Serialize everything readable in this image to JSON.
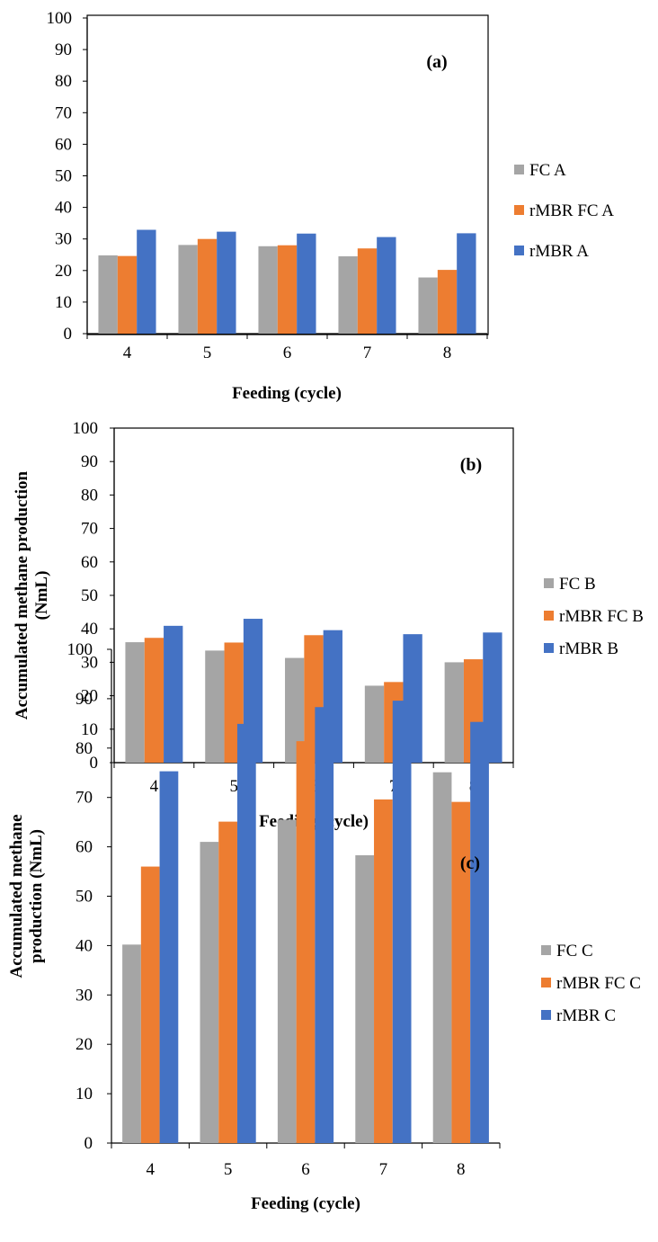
{
  "colors": {
    "FC": "#a5a5a5",
    "rMBR FC": "#ed7d31",
    "rMBR": "#4472c4"
  },
  "chart_data": [
    {
      "type": "bar",
      "panel_label": "(a)",
      "categories": [
        "4",
        "5",
        "6",
        "7",
        "8"
      ],
      "series": [
        {
          "name": "FC A",
          "color": "#a5a5a5",
          "values": [
            24.8,
            28.1,
            27.7,
            24.5,
            17.8
          ]
        },
        {
          "name": "rMBR FC A",
          "color": "#ed7d31",
          "values": [
            24.6,
            30.0,
            28.0,
            27.0,
            20.2
          ]
        },
        {
          "name": "rMBR A",
          "color": "#4472c4",
          "values": [
            32.9,
            32.3,
            31.7,
            30.6,
            31.8
          ]
        }
      ],
      "xlabel": "Feeding (cycle)",
      "ylabel": [],
      "ylim": [
        0,
        100
      ],
      "yticks": [
        "0",
        "10",
        "20",
        "30",
        "40",
        "50",
        "60",
        "70",
        "80",
        "90",
        "100"
      ],
      "legend": "right"
    },
    {
      "type": "bar",
      "panel_label": "(b)",
      "categories": [
        "4",
        "5",
        "6",
        "7",
        "8"
      ],
      "series": [
        {
          "name": "FC B",
          "color": "#a5a5a5",
          "values": [
            36.0,
            33.5,
            31.3,
            23.0,
            30.0
          ]
        },
        {
          "name": "rMBR FC B",
          "color": "#ed7d31",
          "values": [
            37.3,
            35.9,
            38.1,
            24.1,
            30.9
          ]
        },
        {
          "name": "rMBR B",
          "color": "#4472c4",
          "values": [
            40.9,
            43.0,
            39.6,
            38.4,
            38.9
          ]
        }
      ],
      "xlabel": "Feeding (cycle)",
      "ylabel": [
        "Accumulated methane production",
        "(NmL)"
      ],
      "ylim": [
        0,
        100
      ],
      "yticks": [
        "0",
        "10",
        "20",
        "30",
        "40",
        "50",
        "60",
        "70",
        "80",
        "90",
        "100"
      ],
      "legend": "right"
    },
    {
      "type": "bar",
      "panel_label": "(c)",
      "categories": [
        "4",
        "5",
        "6",
        "7",
        "8"
      ],
      "series": [
        {
          "name": "FC C",
          "color": "#a5a5a5",
          "values": [
            40.2,
            61.0,
            65.5,
            58.3,
            75.1
          ]
        },
        {
          "name": "rMBR FC C",
          "color": "#ed7d31",
          "values": [
            56.0,
            65.1,
            81.4,
            69.6,
            69.1
          ]
        },
        {
          "name": "rMBR C",
          "color": "#4472c4",
          "values": [
            75.3,
            84.9,
            88.3,
            89.6,
            85.3
          ]
        }
      ],
      "xlabel": "Feeding (cycle)",
      "ylabel": [
        "Accumulated methane",
        "production (NmL)"
      ],
      "ylim": [
        0,
        100
      ],
      "yticks": [
        "0",
        "10",
        "20",
        "30",
        "40",
        "50",
        "60",
        "70",
        "80",
        "90",
        "100"
      ],
      "legend": "right"
    }
  ]
}
